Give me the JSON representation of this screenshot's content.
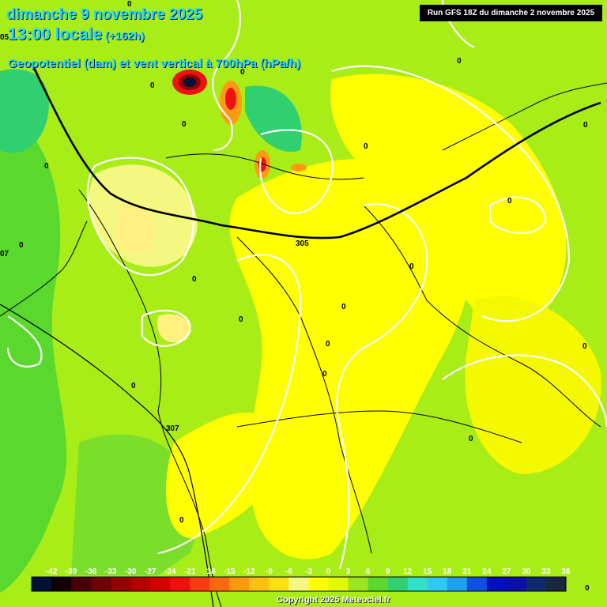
{
  "header": {
    "date_line": "dimanche 9 novembre 2025",
    "time_line": "13:00 locale",
    "lead_time": "(+162h)",
    "parameter_line": "Geopotentiel (dam) et vent vertical à 700hPa (hPa/h)",
    "run_info": "Run GFS 18Z du dimanche 2 novembre 2025"
  },
  "footer": {
    "copyright": "Copyright 2025 Meteociel.fr"
  },
  "legend": {
    "ticks": [
      "-42",
      "-39",
      "-36",
      "-33",
      "-30",
      "-27",
      "-24",
      "-21",
      "-18",
      "-15",
      "-12",
      "-9",
      "-6",
      "-3",
      "0",
      "3",
      "6",
      "9",
      "12",
      "15",
      "18",
      "21",
      "24",
      "27",
      "30",
      "33",
      "36"
    ],
    "colors": [
      "#02103a",
      "#120000",
      "#4a0000",
      "#6e0000",
      "#940000",
      "#b40000",
      "#d40000",
      "#f01010",
      "#ff3a10",
      "#ff6a10",
      "#ff9a10",
      "#ffc010",
      "#ffe010",
      "#f4f880",
      "#ffff00",
      "#e0f800",
      "#9ae620",
      "#5ad82e",
      "#30d070",
      "#30e0c8",
      "#30c8f8",
      "#20a0f0",
      "#1050e0",
      "#0010c0",
      "#0a10a8",
      "#102870",
      "#182840"
    ]
  },
  "contour_labels": {
    "geopotential": [
      "305",
      "307",
      "05",
      "07"
    ],
    "vertical_wind_zero": "0"
  },
  "geopotential_lines": [
    {
      "label": "305"
    },
    {
      "label": "307"
    }
  ]
}
